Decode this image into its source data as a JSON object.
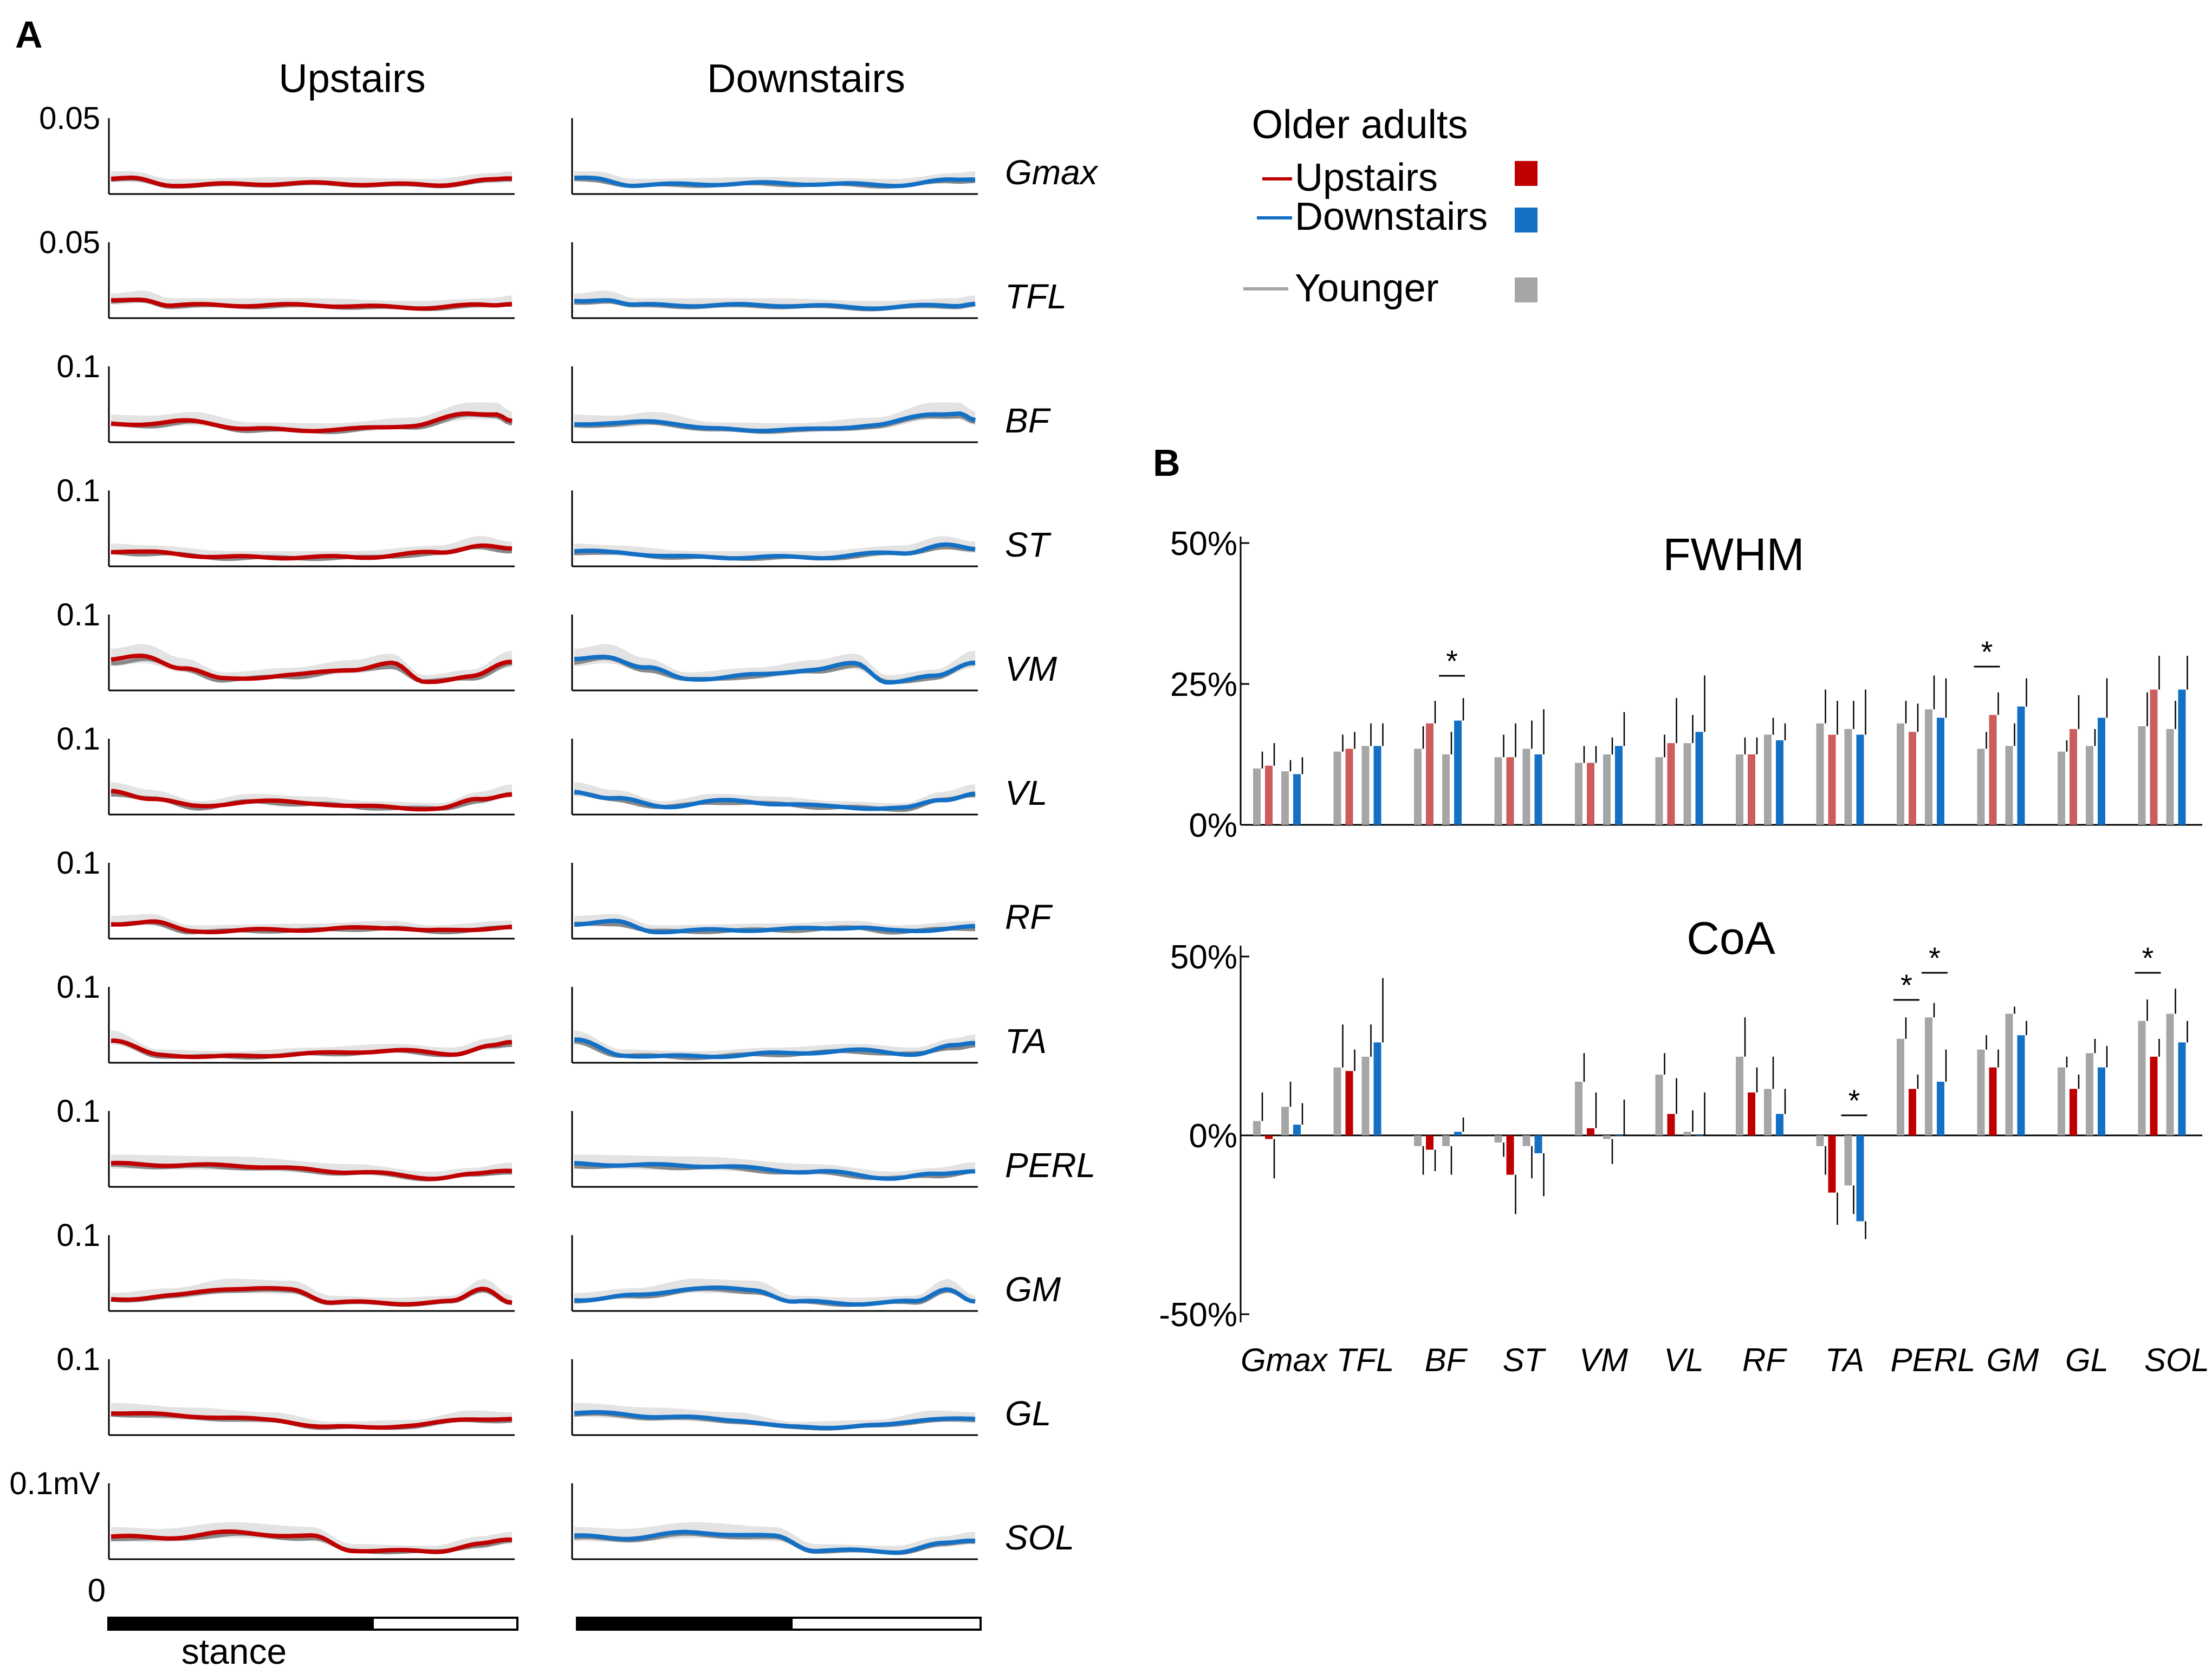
{
  "panel_a": {
    "label": "A",
    "col_titles": [
      "Upstairs",
      "Downstairs"
    ],
    "muscles": [
      "Gmax",
      "TFL",
      "BF",
      "ST",
      "VM",
      "VL",
      "RF",
      "TA",
      "PERL",
      "GM",
      "GL",
      "SOL"
    ],
    "y_max_labels": [
      "0.05",
      "0.05",
      "0.1",
      "0.1",
      "0.1",
      "0.1",
      "0.1",
      "0.1",
      "0.1",
      "0.1",
      "0.1",
      "0.1mV"
    ],
    "y_zero_label": "0",
    "stance_label": "stance"
  },
  "legend": {
    "title": "Older adults",
    "items": [
      {
        "label": "Upstairs",
        "color": "#c00000"
      },
      {
        "label": "Downstairs",
        "color": "#1470c4"
      },
      {
        "label": "Younger",
        "color": "#a6a6a6"
      }
    ]
  },
  "panel_b": {
    "label": "B"
  },
  "chart_data": [
    {
      "type": "bar",
      "title": "FWHM",
      "categories": [
        "Gmax",
        "TFL",
        "BF",
        "ST",
        "VM",
        "VL",
        "RF",
        "TA",
        "PERL",
        "GM",
        "GL",
        "SOL"
      ],
      "y_tick_labels": [
        "50%",
        "25%",
        "0%"
      ],
      "ylim": [
        0,
        50
      ],
      "series": [
        {
          "name": "Younger (up)",
          "color": "#a6a6a6",
          "values": [
            10,
            13,
            13.5,
            12,
            11,
            12,
            12.5,
            18,
            18,
            13.5,
            13,
            17.5
          ],
          "err": [
            3,
            3,
            4,
            4,
            3,
            4,
            3,
            6,
            4,
            3,
            2,
            6
          ]
        },
        {
          "name": "Upstairs",
          "color": "#cd5c5c",
          "values": [
            10.5,
            13.5,
            18,
            12,
            11,
            14.5,
            12.5,
            16,
            16.5,
            19.5,
            17,
            24
          ],
          "err": [
            4,
            3,
            4,
            6,
            3,
            8,
            3,
            6,
            5,
            4,
            6,
            6
          ]
        },
        {
          "name": "Younger (down)",
          "color": "#a6a6a6",
          "values": [
            9.5,
            14,
            12.5,
            13.5,
            12.5,
            14.5,
            16,
            17,
            20.5,
            14,
            14,
            17
          ],
          "err": [
            2,
            4,
            4,
            5,
            3,
            5,
            3,
            5,
            6,
            4,
            3,
            5
          ]
        },
        {
          "name": "Downstairs",
          "color": "#1470c4",
          "values": [
            9,
            14,
            18.5,
            12.5,
            14,
            16.5,
            15,
            16,
            19,
            21,
            19,
            24
          ],
          "err": [
            3,
            4,
            4,
            8,
            6,
            10,
            3,
            8,
            7,
            5,
            7,
            6
          ]
        }
      ],
      "significance": [
        {
          "category": "BF",
          "label": "*"
        },
        {
          "category": "GM",
          "label": "*"
        }
      ]
    },
    {
      "type": "bar",
      "title": "CoA",
      "categories": [
        "Gmax",
        "TFL",
        "BF",
        "ST",
        "VM",
        "VL",
        "RF",
        "TA",
        "PERL",
        "GM",
        "GL",
        "SOL"
      ],
      "y_tick_labels": [
        "50%",
        "0%",
        "-50%"
      ],
      "ylim": [
        -50,
        50
      ],
      "series": [
        {
          "name": "Younger (up)",
          "color": "#a6a6a6",
          "values": [
            4,
            19,
            -3,
            -2,
            15,
            17,
            22,
            -3,
            27,
            24,
            19,
            32
          ],
          "err": [
            8,
            12,
            8,
            4,
            8,
            6,
            11,
            8,
            6,
            4,
            3,
            6
          ]
        },
        {
          "name": "Upstairs",
          "color": "#c00000",
          "values": [
            -1,
            18,
            -4,
            -11,
            2,
            6,
            12,
            -16,
            13,
            19,
            13,
            22
          ],
          "err": [
            11,
            6,
            6,
            11,
            10,
            10,
            7,
            9,
            4,
            5,
            4,
            5
          ]
        },
        {
          "name": "Younger (down)",
          "color": "#a6a6a6",
          "values": [
            8,
            22,
            -3,
            -3,
            -1,
            1,
            13,
            -14,
            33,
            34,
            23,
            34
          ],
          "err": [
            7,
            9,
            8,
            9,
            7,
            6,
            9,
            8,
            4,
            2,
            4,
            7
          ]
        },
        {
          "name": "Downstairs",
          "color": "#1470c4",
          "values": [
            3,
            26,
            1,
            -5,
            0,
            0,
            6,
            -24,
            15,
            28,
            19,
            26
          ],
          "err": [
            6,
            18,
            4,
            12,
            10,
            12,
            7,
            5,
            9,
            4,
            6,
            6
          ]
        }
      ],
      "significance": [
        {
          "category": "TA",
          "label": "*"
        },
        {
          "category": "PERL",
          "label": "*"
        },
        {
          "category": "PERL",
          "label": "*"
        },
        {
          "category": "SOL",
          "label": "*"
        }
      ]
    }
  ]
}
